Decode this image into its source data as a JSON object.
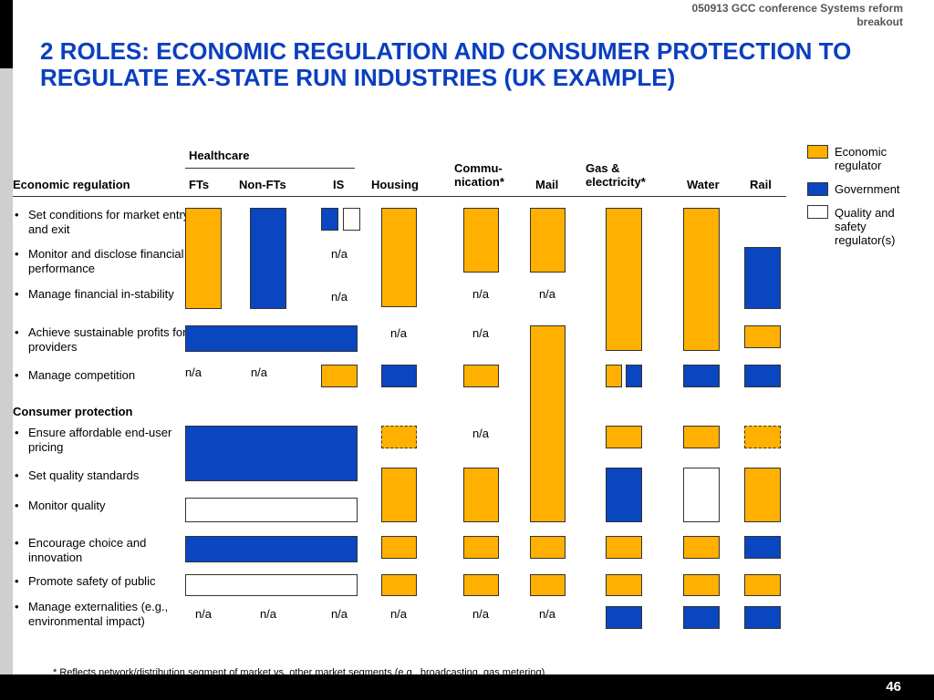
{
  "header": {
    "conference": "050913 GCC conference Systems reform breakout",
    "title": "2 ROLES: ECONOMIC REGULATION AND CONSUMER PROTECTION TO REGULATE EX-STATE RUN INDUSTRIES (UK EXAMPLE)"
  },
  "columns": {
    "group_healthcare": "Healthcare",
    "ftf": "FTs",
    "nonft": "Non-FTs",
    "is": "IS",
    "housing": "Housing",
    "comms": "Commu-nication*",
    "mail": "Mail",
    "gas": "Gas & electricity*",
    "water": "Water",
    "rail": "Rail"
  },
  "sections": {
    "economic": "Economic regulation",
    "consumer": "Consumer protection"
  },
  "rows": [
    "Set conditions for market entry and exit",
    "Monitor and disclose financial performance",
    "Manage financial in-stability",
    "Achieve sustainable profits for providers",
    "Manage competition",
    "Ensure affordable end-user pricing",
    "Set quality standards",
    "Monitor quality",
    "Encourage choice and innovation",
    "Promote safety of public",
    "Manage externalities (e.g., environmental impact)"
  ],
  "na_text": "n/a",
  "legend": {
    "economic": "Economic regulator",
    "government": "Government",
    "quality": "Quality and safety regulator(s)"
  },
  "colors": {
    "economic": "#ffb000",
    "government": "#0a46c0",
    "quality": "#ffffff"
  },
  "footnote": "* Reflects network/distribution segment of market vs. other market segments (e.g., broadcasting, gas metering)",
  "page_number": "46"
}
